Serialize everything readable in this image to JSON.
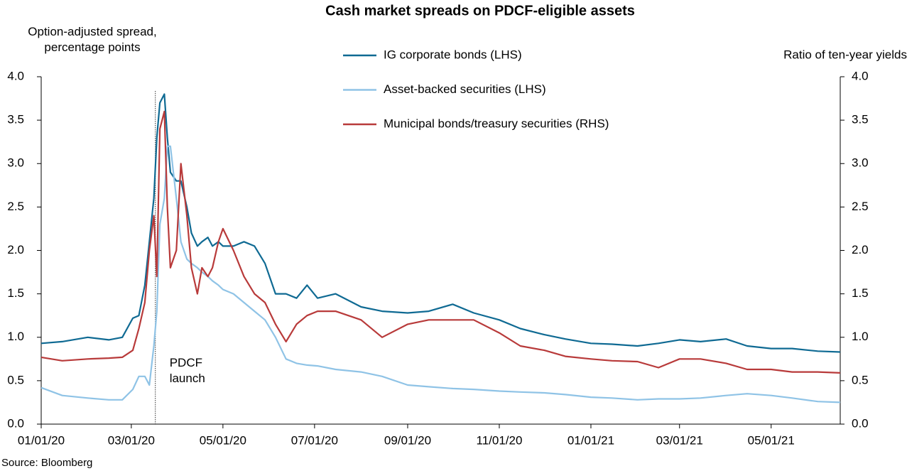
{
  "chart_data": {
    "type": "line",
    "title": "Cash market spreads on PDCF-eligible assets",
    "y_label": "Option-adjusted spread, percentage points",
    "y2_label": "Ratio of ten-year yields",
    "source": "Source: Bloomberg",
    "annotation": {
      "text": "PDCF launch",
      "x": "2020-03-17"
    },
    "x": [
      "2020-01-01",
      "2020-01-15",
      "2020-02-01",
      "2020-02-15",
      "2020-02-24",
      "2020-03-02",
      "2020-03-06",
      "2020-03-10",
      "2020-03-13",
      "2020-03-16",
      "2020-03-18",
      "2020-03-20",
      "2020-03-23",
      "2020-03-25",
      "2020-03-27",
      "2020-03-31",
      "2020-04-03",
      "2020-04-07",
      "2020-04-10",
      "2020-04-14",
      "2020-04-17",
      "2020-04-21",
      "2020-04-24",
      "2020-04-28",
      "2020-05-01",
      "2020-05-08",
      "2020-05-15",
      "2020-05-22",
      "2020-05-29",
      "2020-06-05",
      "2020-06-12",
      "2020-06-19",
      "2020-06-26",
      "2020-07-03",
      "2020-07-15",
      "2020-08-01",
      "2020-08-15",
      "2020-09-01",
      "2020-09-15",
      "2020-10-01",
      "2020-10-15",
      "2020-11-01",
      "2020-11-15",
      "2020-12-01",
      "2020-12-15",
      "2021-01-01",
      "2021-01-15",
      "2021-02-01",
      "2021-02-15",
      "2021-03-01",
      "2021-03-15",
      "2021-04-01",
      "2021-04-15",
      "2021-05-01",
      "2021-05-15",
      "2021-06-01",
      "2021-06-16"
    ],
    "series": [
      {
        "name": "IG corporate bonds (LHS)",
        "color": "#0f6a93",
        "axis": "y",
        "values": [
          0.93,
          0.95,
          1.0,
          0.97,
          1.0,
          1.22,
          1.25,
          1.6,
          2.1,
          2.6,
          3.3,
          3.7,
          3.8,
          3.3,
          2.9,
          2.8,
          2.8,
          2.5,
          2.2,
          2.05,
          2.1,
          2.15,
          2.05,
          2.1,
          2.05,
          2.05,
          2.1,
          2.05,
          1.85,
          1.5,
          1.5,
          1.45,
          1.6,
          1.45,
          1.5,
          1.35,
          1.3,
          1.28,
          1.3,
          1.38,
          1.28,
          1.2,
          1.1,
          1.03,
          0.98,
          0.93,
          0.92,
          0.9,
          0.93,
          0.97,
          0.95,
          0.98,
          0.9,
          0.87,
          0.87,
          0.84,
          0.83
        ]
      },
      {
        "name": "Asset-backed securities (LHS)",
        "color": "#8fc3e6",
        "axis": "y",
        "values": [
          0.42,
          0.33,
          0.3,
          0.28,
          0.28,
          0.4,
          0.55,
          0.55,
          0.45,
          0.9,
          1.3,
          2.3,
          2.6,
          3.2,
          3.2,
          2.6,
          2.1,
          1.9,
          1.85,
          1.8,
          1.75,
          1.7,
          1.65,
          1.6,
          1.55,
          1.5,
          1.4,
          1.3,
          1.2,
          1.0,
          0.75,
          0.7,
          0.68,
          0.67,
          0.63,
          0.6,
          0.55,
          0.45,
          0.43,
          0.41,
          0.4,
          0.38,
          0.37,
          0.36,
          0.34,
          0.31,
          0.3,
          0.28,
          0.29,
          0.29,
          0.3,
          0.33,
          0.35,
          0.33,
          0.3,
          0.26,
          0.25
        ]
      },
      {
        "name": "Municipal bonds/treasury securities (RHS)",
        "color": "#b83a3a",
        "axis": "y2",
        "values": [
          0.77,
          0.73,
          0.75,
          0.76,
          0.77,
          0.85,
          1.1,
          1.4,
          2.0,
          2.4,
          1.7,
          3.4,
          3.6,
          2.5,
          1.8,
          2.0,
          3.0,
          2.4,
          1.8,
          1.5,
          1.8,
          1.7,
          1.8,
          2.1,
          2.25,
          2.0,
          1.7,
          1.5,
          1.4,
          1.15,
          0.95,
          1.15,
          1.25,
          1.3,
          1.3,
          1.2,
          1.0,
          1.15,
          1.2,
          1.2,
          1.2,
          1.05,
          0.9,
          0.85,
          0.78,
          0.75,
          0.73,
          0.72,
          0.65,
          0.75,
          0.75,
          0.7,
          0.63,
          0.63,
          0.6,
          0.6,
          0.59
        ]
      }
    ],
    "xlim": [
      "2020-01-01",
      "2021-06-16"
    ],
    "xticks": [
      {
        "value": "2020-01-01",
        "label": "01/01/20"
      },
      {
        "value": "2020-03-01",
        "label": "03/01/20"
      },
      {
        "value": "2020-05-01",
        "label": "05/01/20"
      },
      {
        "value": "2020-07-01",
        "label": "07/01/20"
      },
      {
        "value": "2020-09-01",
        "label": "09/01/20"
      },
      {
        "value": "2020-11-01",
        "label": "11/01/20"
      },
      {
        "value": "2021-01-01",
        "label": "01/01/21"
      },
      {
        "value": "2021-03-01",
        "label": "03/01/21"
      },
      {
        "value": "2021-05-01",
        "label": "05/01/21"
      }
    ],
    "ylim": [
      0,
      4
    ],
    "yticks": [
      {
        "value": 0,
        "label": "0.0"
      },
      {
        "value": 0.5,
        "label": "0.5"
      },
      {
        "value": 1,
        "label": "1.0"
      },
      {
        "value": 1.5,
        "label": "1.5"
      },
      {
        "value": 2,
        "label": "2.0"
      },
      {
        "value": 2.5,
        "label": "2.5"
      },
      {
        "value": 3,
        "label": "3.0"
      },
      {
        "value": 3.5,
        "label": "3.5"
      },
      {
        "value": 4,
        "label": "4.0"
      }
    ],
    "y2lim": [
      0,
      4
    ],
    "y2ticks": [
      {
        "value": 0,
        "label": "0.0"
      },
      {
        "value": 0.5,
        "label": "0.5"
      },
      {
        "value": 1,
        "label": "1.0"
      },
      {
        "value": 1.5,
        "label": "1.5"
      },
      {
        "value": 2,
        "label": "2.0"
      },
      {
        "value": 2.5,
        "label": "2.5"
      },
      {
        "value": 3,
        "label": "3.0"
      },
      {
        "value": 3.5,
        "label": "3.5"
      },
      {
        "value": 4,
        "label": "4.0"
      }
    ],
    "grid": false
  }
}
